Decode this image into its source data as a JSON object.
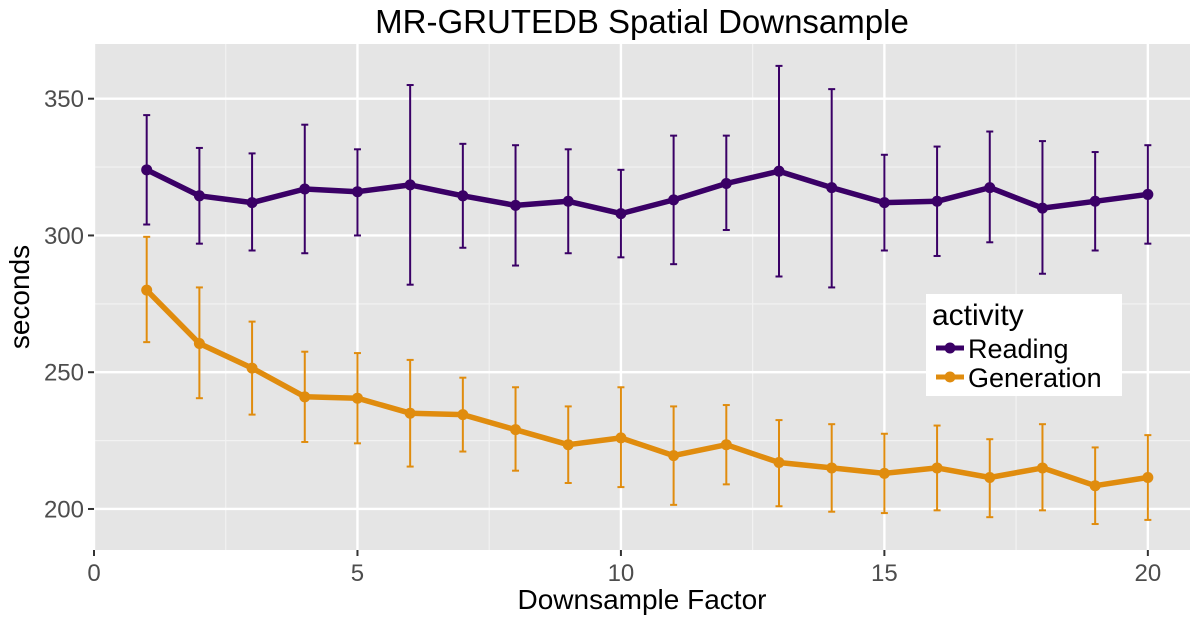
{
  "chart_data": {
    "type": "line",
    "title": "MR-GRUTEDB Spatial Downsample",
    "xlabel": "Downsample Factor",
    "ylabel": "seconds",
    "xlim": [
      0,
      20.8
    ],
    "ylim": [
      185,
      370
    ],
    "x_ticks": [
      0,
      5,
      10,
      15,
      20
    ],
    "y_ticks": [
      200,
      250,
      300,
      350
    ],
    "grid": true,
    "legend": {
      "title": "activity",
      "placement": "right"
    },
    "x": [
      1,
      2,
      3,
      4,
      5,
      6,
      7,
      8,
      9,
      10,
      11,
      12,
      13,
      14,
      15,
      16,
      17,
      18,
      19,
      20
    ],
    "series": [
      {
        "name": "Reading",
        "color": "#3a0066",
        "values": [
          324,
          314.5,
          312,
          317,
          316,
          318.5,
          314.5,
          311,
          312.5,
          308,
          313,
          319,
          323.5,
          317.5,
          312,
          312.5,
          317.5,
          310,
          312.5,
          315
        ],
        "lower": [
          304,
          297,
          294.5,
          293.5,
          300,
          282,
          295.5,
          289,
          293.5,
          292,
          289.5,
          302,
          285,
          281,
          294.5,
          292.5,
          297.5,
          286,
          294.5,
          297
        ],
        "upper": [
          344,
          332,
          330,
          340.5,
          331.5,
          355,
          333.5,
          333,
          331.5,
          324,
          336.5,
          336.5,
          362,
          353.5,
          329.5,
          332.5,
          338,
          334.5,
          330.5,
          333
        ]
      },
      {
        "name": "Generation",
        "color": "#e08c0e",
        "values": [
          280,
          260.5,
          251.5,
          241,
          240.5,
          235,
          234.5,
          229,
          223.5,
          226,
          219.5,
          223.5,
          217,
          215,
          213,
          215,
          211.5,
          215,
          208.5,
          211.5
        ],
        "lower": [
          261,
          240.5,
          234.5,
          224.5,
          224,
          215.5,
          221,
          214,
          209.5,
          208,
          201.5,
          209,
          201,
          199,
          198.5,
          199.5,
          197,
          199.5,
          194.5,
          196
        ],
        "upper": [
          299.5,
          281,
          268.5,
          257.5,
          257,
          254.5,
          248,
          244.5,
          237.5,
          244.5,
          237.5,
          238,
          232.5,
          231,
          227.5,
          230.5,
          225.5,
          231,
          222.5,
          227
        ]
      }
    ]
  }
}
